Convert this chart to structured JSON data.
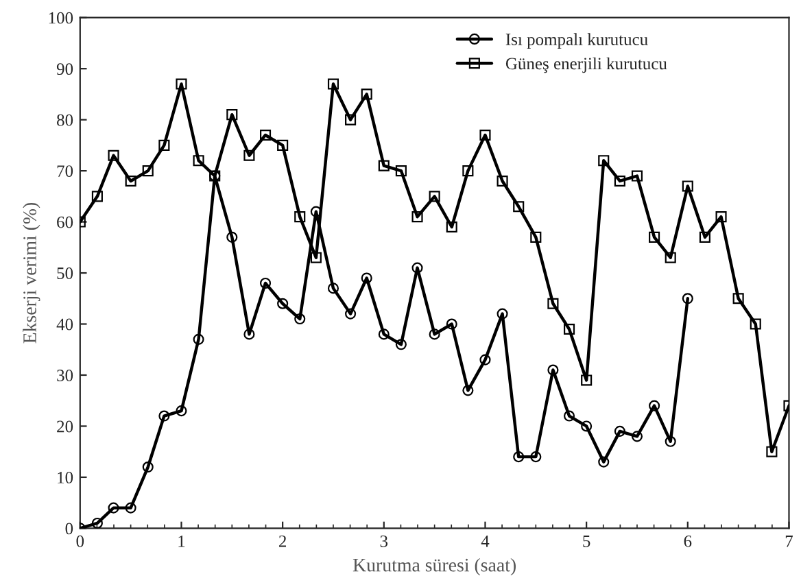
{
  "chart_data": {
    "type": "line",
    "xlabel": "Kurutma süresi (saat)",
    "ylabel": "Ekserji verimi (%)",
    "xlim": [
      0,
      7
    ],
    "xticks": [
      0,
      1,
      2,
      3,
      4,
      5,
      6,
      7
    ],
    "ylim": [
      0,
      100
    ],
    "yticks": [
      0,
      10,
      20,
      30,
      40,
      50,
      60,
      70,
      80,
      90,
      100
    ],
    "grid": false,
    "legend": "top right",
    "line_style": "solid",
    "series": [
      {
        "name": "Isı pompalı kurutucu",
        "color": "#000000",
        "marker": "circle",
        "x": [
          0,
          0.17,
          0.33,
          0.5,
          0.67,
          0.83,
          1,
          1.17,
          1.33,
          1.5,
          1.67,
          1.83,
          2,
          2.17,
          2.33,
          2.5,
          2.67,
          2.83,
          3,
          3.17,
          3.33,
          3.5,
          3.67,
          3.83,
          4,
          4.17,
          4.33,
          4.5,
          4.67,
          4.83,
          5,
          5.17,
          5.33,
          5.5,
          5.67,
          5.83,
          6
        ],
        "values": [
          0,
          1,
          4,
          4,
          12,
          22,
          23,
          37,
          69,
          57,
          38,
          48,
          44,
          41,
          62,
          47,
          42,
          49,
          38,
          36,
          51,
          38,
          40,
          27,
          33,
          42,
          14,
          14,
          31,
          22,
          20,
          13,
          19,
          18,
          24,
          17,
          45
        ]
      },
      {
        "name": "Güneş enerjili kurutucu",
        "color": "#000000",
        "marker": "square",
        "x": [
          0,
          0.17,
          0.33,
          0.5,
          0.67,
          0.83,
          1,
          1.17,
          1.33,
          1.5,
          1.67,
          1.83,
          2,
          2.17,
          2.33,
          2.5,
          2.67,
          2.83,
          3,
          3.17,
          3.33,
          3.5,
          3.67,
          3.83,
          4,
          4.17,
          4.33,
          4.5,
          4.67,
          4.83,
          5,
          5.17,
          5.33,
          5.5,
          5.67,
          5.83,
          6,
          6.17,
          6.33,
          6.5,
          6.67,
          6.83,
          7
        ],
        "values": [
          60,
          65,
          73,
          68,
          70,
          75,
          87,
          72,
          69,
          81,
          73,
          77,
          75,
          61,
          53,
          87,
          80,
          85,
          71,
          70,
          61,
          65,
          59,
          70,
          77,
          68,
          63,
          57,
          44,
          39,
          29,
          72,
          68,
          69,
          57,
          53,
          67,
          57,
          61,
          45,
          40,
          15,
          24
        ]
      }
    ]
  }
}
